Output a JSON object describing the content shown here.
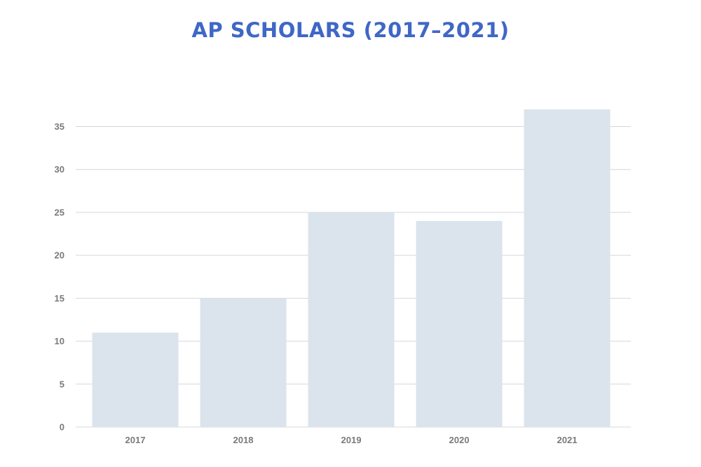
{
  "colors": {
    "title": "#3f67c6",
    "bar": "#dbe4ec",
    "gridline": "#d4d8dc",
    "axis_text": "#7a7a7a",
    "background": "#ffffff"
  },
  "chart_data": {
    "type": "bar",
    "title": "AP SCHOLARS (2017–2021)",
    "categories": [
      "2017",
      "2018",
      "2019",
      "2020",
      "2021"
    ],
    "values": [
      11,
      15,
      25,
      24,
      37
    ],
    "xlabel": "",
    "ylabel": "",
    "ylim": [
      0,
      37
    ],
    "yticks": [
      0,
      5,
      10,
      15,
      20,
      25,
      30,
      35
    ],
    "grid": true,
    "legend": "none"
  }
}
